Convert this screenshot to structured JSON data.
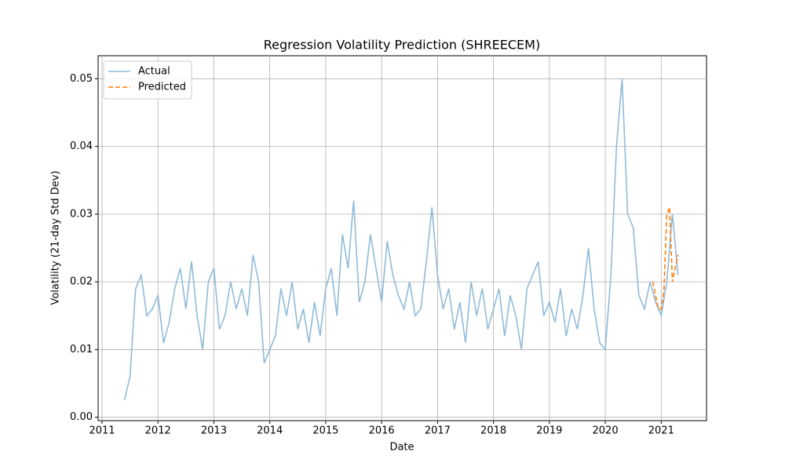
{
  "chart_data": {
    "type": "line",
    "title": "Regression Volatility Prediction (SHREECEM)",
    "x_label": "Date",
    "y_label": "Volatility (21-day Std Dev)",
    "xlim": [
      2010.93,
      2021.81
    ],
    "ylim": [
      -0.0005,
      0.0534
    ],
    "xticks": [
      2011,
      2012,
      2013,
      2014,
      2015,
      2016,
      2017,
      2018,
      2019,
      2020,
      2021
    ],
    "yticks": [
      {
        "value": 0,
        "label": "0.00"
      },
      {
        "value": 0.01,
        "label": "0.01"
      },
      {
        "value": 0.02,
        "label": "0.02"
      },
      {
        "value": 0.03,
        "label": "0.03"
      },
      {
        "value": 0.04,
        "label": "0.04"
      },
      {
        "value": 0.05,
        "label": "0.05"
      }
    ],
    "grid": true,
    "legend": "upper left",
    "series": [
      {
        "name": "Actual",
        "color": "#8fbbd9",
        "dash": false,
        "x": [
          2011.4,
          2011.5,
          2011.6,
          2011.7,
          2011.8,
          2011.9,
          2012.0,
          2012.1,
          2012.2,
          2012.3,
          2012.4,
          2012.5,
          2012.6,
          2012.7,
          2012.8,
          2012.9,
          2013.0,
          2013.1,
          2013.2,
          2013.3,
          2013.4,
          2013.5,
          2013.6,
          2013.7,
          2013.8,
          2013.9,
          2014.0,
          2014.1,
          2014.2,
          2014.3,
          2014.4,
          2014.5,
          2014.6,
          2014.7,
          2014.8,
          2014.9,
          2015.0,
          2015.1,
          2015.2,
          2015.3,
          2015.4,
          2015.5,
          2015.6,
          2015.7,
          2015.8,
          2015.9,
          2016.0,
          2016.1,
          2016.2,
          2016.3,
          2016.4,
          2016.5,
          2016.6,
          2016.7,
          2016.8,
          2016.9,
          2017.0,
          2017.1,
          2017.2,
          2017.3,
          2017.4,
          2017.5,
          2017.6,
          2017.7,
          2017.8,
          2017.9,
          2018.0,
          2018.1,
          2018.2,
          2018.3,
          2018.4,
          2018.5,
          2018.6,
          2018.7,
          2018.8,
          2018.9,
          2019.0,
          2019.1,
          2019.2,
          2019.3,
          2019.4,
          2019.5,
          2019.6,
          2019.7,
          2019.8,
          2019.9,
          2020.0,
          2020.1,
          2020.2,
          2020.3,
          2020.4,
          2020.5,
          2020.6,
          2020.7,
          2020.8,
          2020.9,
          2021.0,
          2021.1,
          2021.2,
          2021.3
        ],
        "values": [
          0.0025,
          0.006,
          0.019,
          0.021,
          0.015,
          0.016,
          0.018,
          0.011,
          0.014,
          0.019,
          0.022,
          0.016,
          0.023,
          0.015,
          0.01,
          0.02,
          0.022,
          0.013,
          0.015,
          0.02,
          0.016,
          0.019,
          0.015,
          0.024,
          0.02,
          0.008,
          0.01,
          0.012,
          0.019,
          0.015,
          0.02,
          0.013,
          0.016,
          0.011,
          0.017,
          0.012,
          0.019,
          0.022,
          0.015,
          0.027,
          0.022,
          0.032,
          0.017,
          0.02,
          0.027,
          0.022,
          0.017,
          0.026,
          0.021,
          0.018,
          0.016,
          0.02,
          0.015,
          0.016,
          0.023,
          0.031,
          0.021,
          0.016,
          0.019,
          0.013,
          0.017,
          0.011,
          0.02,
          0.015,
          0.019,
          0.013,
          0.016,
          0.019,
          0.012,
          0.018,
          0.015,
          0.01,
          0.019,
          0.021,
          0.023,
          0.015,
          0.017,
          0.014,
          0.019,
          0.012,
          0.016,
          0.013,
          0.018,
          0.025,
          0.016,
          0.011,
          0.01,
          0.021,
          0.04,
          0.05,
          0.03,
          0.028,
          0.018,
          0.016,
          0.02,
          0.017,
          0.015,
          0.02,
          0.03,
          0.021
        ]
      },
      {
        "name": "Predicted",
        "color": "#ff7f0e",
        "dash": true,
        "x": [
          2020.85,
          2020.9,
          2020.95,
          2021.0,
          2021.05,
          2021.1,
          2021.15,
          2021.2,
          2021.25,
          2021.3
        ],
        "values": [
          0.02,
          0.018,
          0.016,
          0.016,
          0.019,
          0.03,
          0.031,
          0.02,
          0.022,
          0.024
        ]
      }
    ]
  }
}
